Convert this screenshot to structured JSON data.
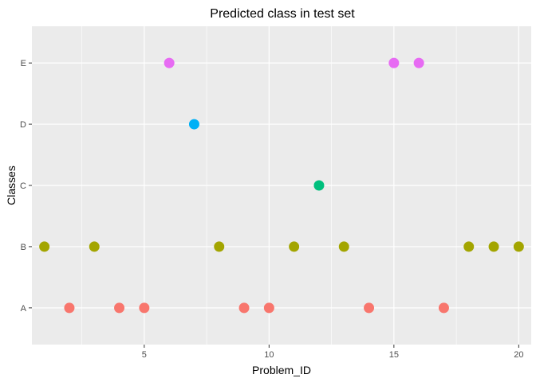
{
  "chart_data": {
    "type": "scatter",
    "title": "Predicted class in test set",
    "xlabel": "Problem_ID",
    "ylabel": "Classes",
    "xlim": [
      0.5,
      20.5
    ],
    "x_ticks": [
      5,
      10,
      15,
      20
    ],
    "x_minor_ticks": [
      2.5,
      7.5,
      12.5,
      17.5
    ],
    "categories": [
      "A",
      "B",
      "C",
      "D",
      "E"
    ],
    "grid": true,
    "legend": "none",
    "class_colors": {
      "A": "#f8766d",
      "B": "#a3a500",
      "C": "#00bf7d",
      "D": "#00b0f6",
      "E": "#e76bf3"
    },
    "points": [
      {
        "x": 1,
        "y": "B"
      },
      {
        "x": 2,
        "y": "A"
      },
      {
        "x": 3,
        "y": "B"
      },
      {
        "x": 4,
        "y": "A"
      },
      {
        "x": 5,
        "y": "A"
      },
      {
        "x": 6,
        "y": "E"
      },
      {
        "x": 7,
        "y": "D"
      },
      {
        "x": 8,
        "y": "B"
      },
      {
        "x": 9,
        "y": "A"
      },
      {
        "x": 10,
        "y": "A"
      },
      {
        "x": 11,
        "y": "B"
      },
      {
        "x": 12,
        "y": "C"
      },
      {
        "x": 13,
        "y": "B"
      },
      {
        "x": 14,
        "y": "A"
      },
      {
        "x": 15,
        "y": "E"
      },
      {
        "x": 16,
        "y": "E"
      },
      {
        "x": 17,
        "y": "A"
      },
      {
        "x": 18,
        "y": "B"
      },
      {
        "x": 19,
        "y": "B"
      },
      {
        "x": 20,
        "y": "B"
      }
    ]
  },
  "colors": {
    "panel_background": "#ebebeb",
    "grid_major": "#ffffff",
    "tick_text": "#4d4d4d"
  }
}
